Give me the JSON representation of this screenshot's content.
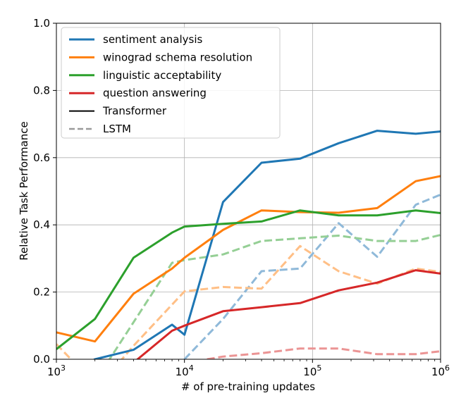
{
  "chart_data": {
    "type": "line",
    "xlabel": "# of pre-training updates",
    "ylabel": "Relative Task Performance",
    "xscale": "log",
    "xlim": [
      1000,
      1000000
    ],
    "ylim": [
      0.0,
      1.0
    ],
    "grid": true,
    "legend_position": "top-left",
    "x_ticks": [
      {
        "value": 1000,
        "base": "10",
        "exp": "3"
      },
      {
        "value": 10000,
        "base": "10",
        "exp": "4"
      },
      {
        "value": 100000,
        "base": "10",
        "exp": "5"
      },
      {
        "value": 1000000,
        "base": "10",
        "exp": "6"
      }
    ],
    "y_ticks": [
      {
        "value": 0.0,
        "label": "0.0"
      },
      {
        "value": 0.2,
        "label": "0.2"
      },
      {
        "value": 0.4,
        "label": "0.4"
      },
      {
        "value": 0.6,
        "label": "0.6"
      },
      {
        "value": 0.8,
        "label": "0.8"
      },
      {
        "value": 1.0,
        "label": "1.0"
      }
    ],
    "legend": [
      {
        "label": "sentiment analysis",
        "color": "#1f77b4",
        "style": "solid"
      },
      {
        "label": "winograd schema resolution",
        "color": "#ff7f0e",
        "style": "solid"
      },
      {
        "label": "linguistic acceptability",
        "color": "#2ca02c",
        "style": "solid"
      },
      {
        "label": "question answering",
        "color": "#d62728",
        "style": "solid"
      },
      {
        "label": "Transformer",
        "color": "#000000",
        "style": "solid"
      },
      {
        "label": "LSTM",
        "color": "#9a9a9a",
        "style": "dashed"
      }
    ],
    "series": [
      {
        "task": "sentiment analysis",
        "model": "Transformer",
        "color": "#1f77b4",
        "style": "solid",
        "x": [
          1000,
          2000,
          4000,
          8000,
          10000,
          20000,
          40000,
          80000,
          160000,
          320000,
          640000,
          1000000
        ],
        "y": [
          -0.05,
          0.0,
          0.028,
          0.103,
          0.073,
          0.468,
          0.585,
          0.597,
          0.643,
          0.68,
          0.671,
          0.678
        ]
      },
      {
        "task": "winograd schema resolution",
        "model": "Transformer",
        "color": "#ff7f0e",
        "style": "solid",
        "x": [
          1000,
          2000,
          4000,
          8000,
          10000,
          20000,
          40000,
          80000,
          160000,
          320000,
          640000,
          1000000
        ],
        "y": [
          0.08,
          0.053,
          0.195,
          0.27,
          0.302,
          0.385,
          0.443,
          0.438,
          0.436,
          0.45,
          0.53,
          0.545
        ]
      },
      {
        "task": "linguistic acceptability",
        "model": "Transformer",
        "color": "#2ca02c",
        "style": "solid",
        "x": [
          1000,
          2000,
          4000,
          8000,
          10000,
          20000,
          40000,
          80000,
          160000,
          320000,
          640000,
          1000000
        ],
        "y": [
          0.03,
          0.12,
          0.302,
          0.377,
          0.395,
          0.403,
          0.41,
          0.443,
          0.428,
          0.428,
          0.443,
          0.435
        ]
      },
      {
        "task": "question answering",
        "model": "Transformer",
        "color": "#d62728",
        "style": "solid",
        "x": [
          4000,
          8000,
          10000,
          20000,
          40000,
          80000,
          160000,
          320000,
          640000,
          1000000
        ],
        "y": [
          -0.01,
          0.085,
          0.1,
          0.143,
          0.155,
          0.167,
          0.205,
          0.228,
          0.265,
          0.255
        ]
      },
      {
        "task": "sentiment analysis",
        "model": "LSTM",
        "color": "#8fb9d9",
        "style": "dashed",
        "x": [
          10000,
          20000,
          40000,
          80000,
          160000,
          320000,
          640000,
          1000000
        ],
        "y": [
          0.0,
          0.12,
          0.262,
          0.27,
          0.405,
          0.305,
          0.46,
          0.49
        ]
      },
      {
        "task": "winograd schema resolution",
        "model": "LSTM",
        "color": "#ffbf86",
        "style": "dashed",
        "x": [
          1000,
          1300,
          2500,
          4000,
          10000,
          20000,
          40000,
          80000,
          160000,
          320000,
          640000,
          1000000
        ],
        "y": [
          0.045,
          0.0,
          -0.05,
          0.04,
          0.202,
          0.215,
          0.21,
          0.337,
          0.262,
          0.225,
          0.27,
          0.26
        ]
      },
      {
        "task": "linguistic acceptability",
        "model": "LSTM",
        "color": "#95cf95",
        "style": "dashed",
        "x": [
          2500,
          4000,
          8000,
          10000,
          20000,
          40000,
          80000,
          160000,
          320000,
          640000,
          1000000
        ],
        "y": [
          -0.01,
          0.11,
          0.287,
          0.295,
          0.312,
          0.352,
          0.36,
          0.368,
          0.352,
          0.352,
          0.37
        ]
      },
      {
        "task": "question answering",
        "model": "LSTM",
        "color": "#eb9494",
        "style": "dashed",
        "x": [
          15000,
          20000,
          40000,
          80000,
          160000,
          320000,
          640000,
          1000000
        ],
        "y": [
          0.0,
          0.008,
          0.018,
          0.032,
          0.032,
          0.015,
          0.015,
          0.024
        ]
      }
    ]
  }
}
